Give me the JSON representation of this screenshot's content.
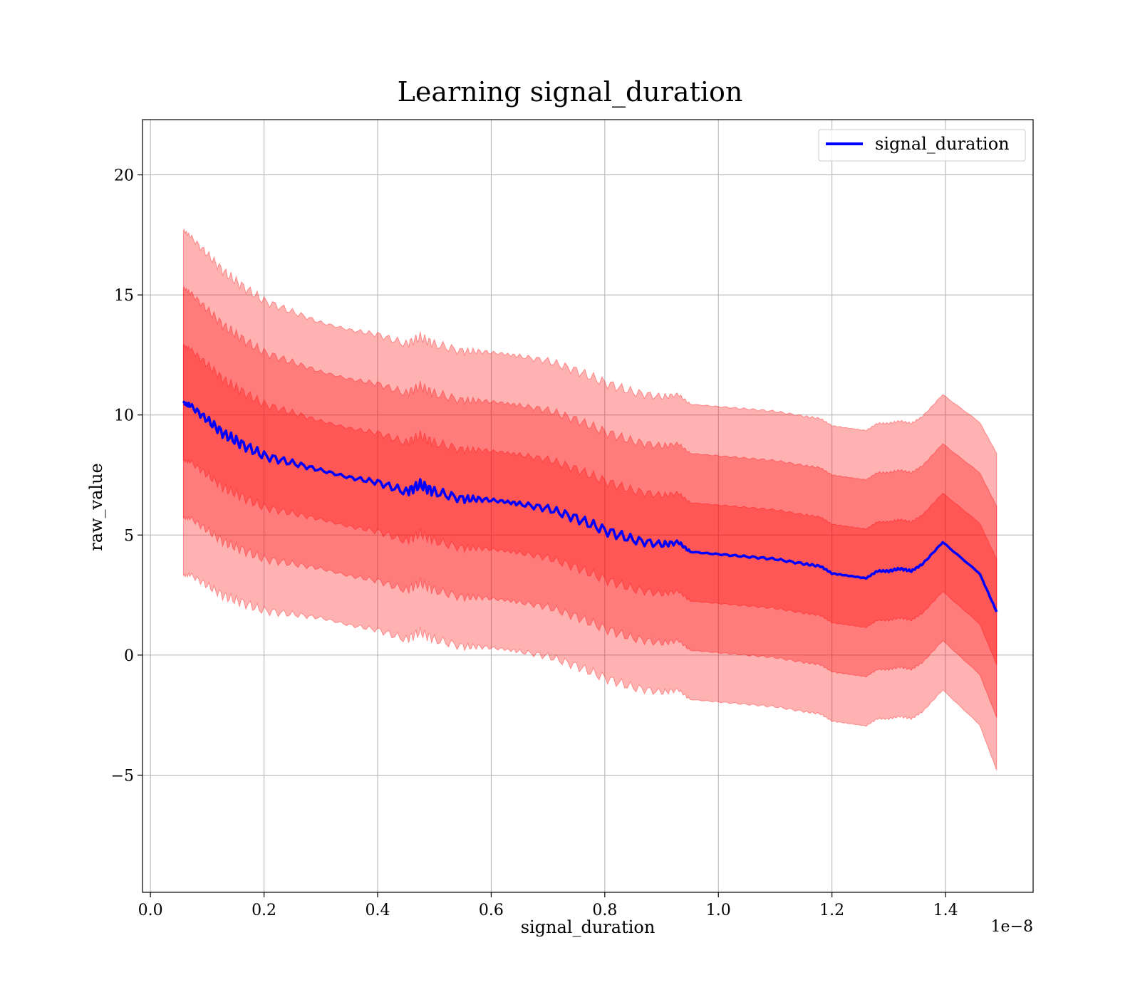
{
  "chart_data": {
    "type": "line",
    "title": "Learning signal_duration",
    "xlabel": "signal_duration",
    "ylabel": "raw_value",
    "x_offset_label": "1e−8",
    "xlim": [
      -1.4e-10,
      1.5542e-08
    ],
    "ylim": [
      -9.88,
      22.3
    ],
    "xticks": [
      0,
      2e-09,
      4e-09,
      6e-09,
      8e-09,
      1e-08,
      1.2e-08,
      1.4e-08
    ],
    "xtick_labels": [
      "0.0",
      "0.2",
      "0.4",
      "0.6",
      "0.8",
      "1.0",
      "1.2",
      "1.4"
    ],
    "yticks": [
      -5,
      0,
      5,
      10,
      15,
      20
    ],
    "ytick_labels": [
      "−5",
      "0",
      "5",
      "10",
      "15",
      "20"
    ],
    "grid": true,
    "legend": {
      "position": "top-right",
      "entries": [
        "signal_duration"
      ]
    },
    "colors": {
      "line": "#0000ff",
      "band": "#ff0000",
      "edge": "#ff0000",
      "grid": "#b0b0b0"
    },
    "bands_sigma_multipliers": [
      1,
      2,
      3
    ],
    "series": [
      {
        "name": "signal_duration",
        "x": [
          5.8e-10,
          7e-10,
          1e-09,
          1.3e-09,
          1.6e-09,
          2e-09,
          2.5e-09,
          3e-09,
          3.5e-09,
          4e-09,
          4.5e-09,
          4.75e-09,
          5e-09,
          5.5e-09,
          5.8e-09,
          6.2e-09,
          6.5e-09,
          7e-09,
          7.5e-09,
          8e-09,
          8.5e-09,
          9e-09,
          9.3e-09,
          9.5e-09,
          1e-08,
          1.05e-08,
          1.1e-08,
          1.15e-08,
          1.18e-08,
          1.2e-08,
          1.23e-08,
          1.26e-08,
          1.28e-08,
          1.3e-08,
          1.32e-08,
          1.34e-08,
          1.36e-08,
          1.395e-08,
          1.46e-08,
          1.49e-08
        ],
        "mean": [
          10.5,
          10.4,
          9.8,
          9.2,
          8.8,
          8.3,
          8.0,
          7.7,
          7.4,
          7.2,
          6.8,
          7.1,
          6.8,
          6.5,
          6.5,
          6.4,
          6.3,
          6.1,
          5.7,
          5.2,
          4.8,
          4.6,
          4.7,
          4.3,
          4.2,
          4.1,
          4.0,
          3.8,
          3.7,
          3.4,
          3.3,
          3.2,
          3.5,
          3.5,
          3.6,
          3.5,
          3.8,
          4.7,
          3.4,
          1.8
        ],
        "sigma": [
          2.4,
          2.35,
          2.3,
          2.25,
          2.2,
          2.15,
          2.1,
          2.05,
          2.05,
          2.05,
          2.05,
          2.05,
          2.05,
          2.05,
          2.05,
          2.05,
          2.05,
          2.05,
          2.05,
          2.05,
          2.05,
          2.05,
          2.05,
          2.05,
          2.05,
          2.05,
          2.05,
          2.05,
          2.05,
          2.05,
          2.05,
          2.05,
          2.05,
          2.05,
          2.05,
          2.05,
          2.05,
          2.05,
          2.1,
          2.2
        ]
      }
    ]
  }
}
